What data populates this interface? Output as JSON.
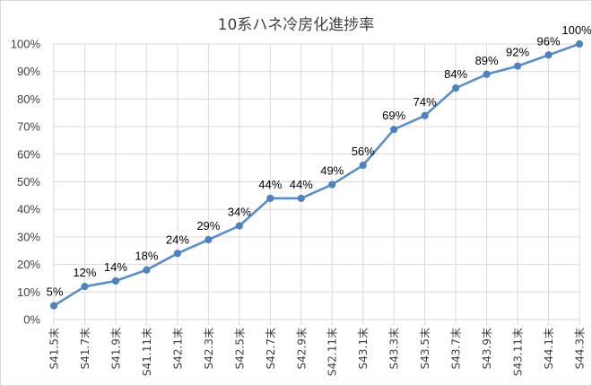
{
  "chart_data": {
    "type": "line",
    "title": "10系ハネ冷房化進捗率",
    "xlabel": "",
    "ylabel": "",
    "ylim": [
      0,
      100
    ],
    "y_tick_labels": [
      "0%",
      "10%",
      "20%",
      "30%",
      "40%",
      "50%",
      "60%",
      "70%",
      "80%",
      "90%",
      "100%"
    ],
    "categories": [
      "S41.5末",
      "S41.7末",
      "S41.9末",
      "S41.11末",
      "S42.1末",
      "S42.3末",
      "S42.5末",
      "S42.7末",
      "S42.9末",
      "S42.11末",
      "S43.1末",
      "S43.3末",
      "S43.5末",
      "S43.7末",
      "S43.9末",
      "S43.11末",
      "S44.1末",
      "S44.3末"
    ],
    "values": [
      5,
      12,
      14,
      18,
      24,
      29,
      34,
      44,
      44,
      49,
      56,
      69,
      74,
      84,
      89,
      92,
      96,
      100
    ],
    "data_labels": [
      "5%",
      "12%",
      "14%",
      "18%",
      "24%",
      "29%",
      "34%",
      "44%",
      "44%",
      "49%",
      "56%",
      "69%",
      "74%",
      "84%",
      "89%",
      "92%",
      "96%",
      "100%"
    ],
    "grid": true,
    "legend": "none",
    "colors": {
      "line": "#5b8fc4",
      "marker": "#4f81bd",
      "grid": "#d9d9d9",
      "text": "#404040"
    }
  }
}
